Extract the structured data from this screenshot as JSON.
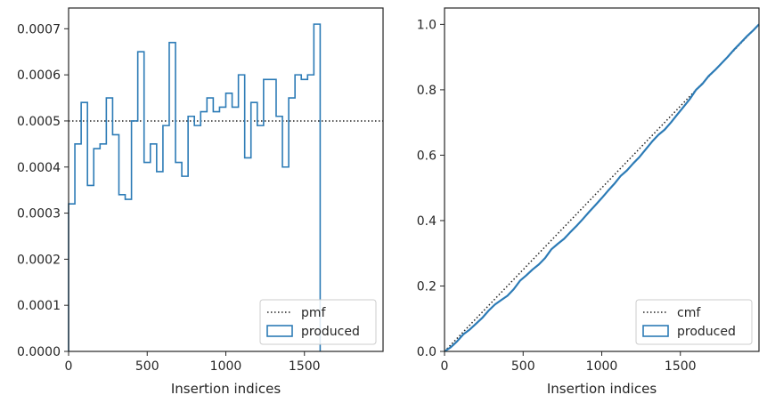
{
  "chart_data": [
    {
      "type": "histogram",
      "xlabel": "Insertion indices",
      "ylabel": "",
      "xlim": [
        0,
        2000
      ],
      "ylim": [
        0,
        0.000745
      ],
      "xticks": [
        0,
        500,
        1000,
        1500
      ],
      "xtick_labels": [
        "0",
        "500",
        "1000",
        "1500"
      ],
      "yticks": [
        0,
        0.0001,
        0.0002,
        0.0003,
        0.0004,
        0.0005,
        0.0006,
        0.0007
      ],
      "ytick_labels": [
        "0.0000",
        "0.0001",
        "0.0002",
        "0.0003",
        "0.0004",
        "0.0005",
        "0.0006",
        "0.0007"
      ],
      "grid": false,
      "legend_position": "lower-right",
      "reference_line": {
        "name": "pmf",
        "style": "dotted",
        "color": "#222222",
        "y": 0.0005
      },
      "series": [
        {
          "name": "produced",
          "style": "step",
          "color": "#2c7bb6",
          "bin_width": 40,
          "values": [
            0.00032,
            0.00045,
            0.00054,
            0.00036,
            0.00044,
            0.00045,
            0.00055,
            0.00047,
            0.00034,
            0.00033,
            0.0005,
            0.00065,
            0.00041,
            0.00045,
            0.00039,
            0.00049,
            0.00067,
            0.00041,
            0.00038,
            0.00051,
            0.00049,
            0.00052,
            0.00055,
            0.00052,
            0.00053,
            0.00056,
            0.00053,
            0.0006,
            0.00042,
            0.00054,
            0.00049,
            0.00059,
            0.00059,
            0.00051,
            0.0004,
            0.00055,
            0.0006,
            0.00059,
            0.0006,
            0.00071
          ]
        }
      ]
    },
    {
      "type": "line",
      "xlabel": "Insertion indices",
      "ylabel": "",
      "xlim": [
        0,
        2000
      ],
      "ylim": [
        0,
        1.05
      ],
      "xticks": [
        0,
        500,
        1000,
        1500
      ],
      "xtick_labels": [
        "0",
        "500",
        "1000",
        "1500"
      ],
      "yticks": [
        0,
        0.2,
        0.4,
        0.6,
        0.8,
        1.0
      ],
      "ytick_labels": [
        "0.0",
        "0.2",
        "0.4",
        "0.6",
        "0.8",
        "1.0"
      ],
      "grid": false,
      "legend_position": "lower-right",
      "reference_line": {
        "name": "cmf",
        "style": "dotted",
        "color": "#222222",
        "x": [
          0,
          2000
        ],
        "y": [
          0,
          1.0
        ]
      },
      "series": [
        {
          "name": "produced",
          "style": "step",
          "color": "#2c7bb6",
          "x": [
            0,
            40,
            80,
            120,
            160,
            200,
            240,
            280,
            320,
            360,
            400,
            440,
            480,
            520,
            560,
            600,
            640,
            680,
            720,
            760,
            800,
            840,
            880,
            920,
            960,
            1000,
            1040,
            1080,
            1120,
            1160,
            1200,
            1240,
            1280,
            1320,
            1360,
            1400,
            1440,
            1480,
            1520,
            1560,
            1600,
            1640,
            1680,
            1720,
            1760,
            1800,
            1840,
            1880,
            1920,
            1960,
            2000
          ],
          "y": [
            0.0,
            0.0128,
            0.0308,
            0.0524,
            0.0668,
            0.0844,
            0.1024,
            0.1244,
            0.1432,
            0.1568,
            0.17,
            0.19,
            0.216,
            0.2324,
            0.2504,
            0.266,
            0.2856,
            0.3124,
            0.3288,
            0.344,
            0.3644,
            0.384,
            0.4048,
            0.4268,
            0.4476,
            0.4688,
            0.4912,
            0.5124,
            0.5364,
            0.5532,
            0.5748,
            0.5944,
            0.618,
            0.6416,
            0.662,
            0.678,
            0.7,
            0.724,
            0.7476,
            0.7716,
            0.8,
            0.818,
            0.842,
            0.86,
            0.88,
            0.9,
            0.922,
            0.942,
            0.962,
            0.98,
            1.0
          ]
        }
      ]
    }
  ]
}
